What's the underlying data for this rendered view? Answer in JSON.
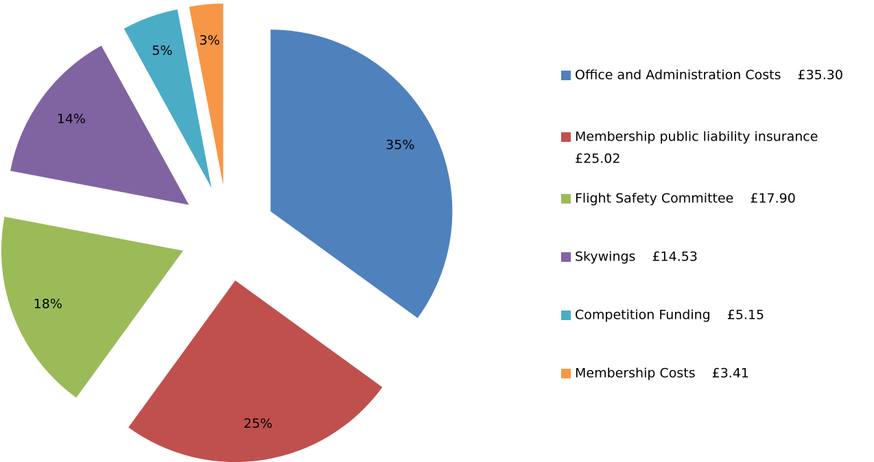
{
  "chart_data": {
    "type": "pie",
    "categories": [
      "Office and Administration Costs",
      "Membership public liability insurance",
      "Flight Safety Committee",
      "Skywings",
      "Competition Funding",
      "Membership Costs"
    ],
    "amounts": [
      "£35.30",
      "£25.02",
      "£17.90",
      "£14.53",
      "£5.15",
      "£3.41"
    ],
    "values": [
      35,
      25,
      18,
      14,
      5,
      3
    ],
    "value_labels": [
      "35%",
      "25%",
      "18%",
      "14%",
      "5%",
      "3%"
    ],
    "colors": [
      "#4f81bd",
      "#c0504d",
      "#9bbb59",
      "#8064a2",
      "#4bacc6",
      "#f79646"
    ],
    "exploded": true,
    "legend": "right"
  }
}
